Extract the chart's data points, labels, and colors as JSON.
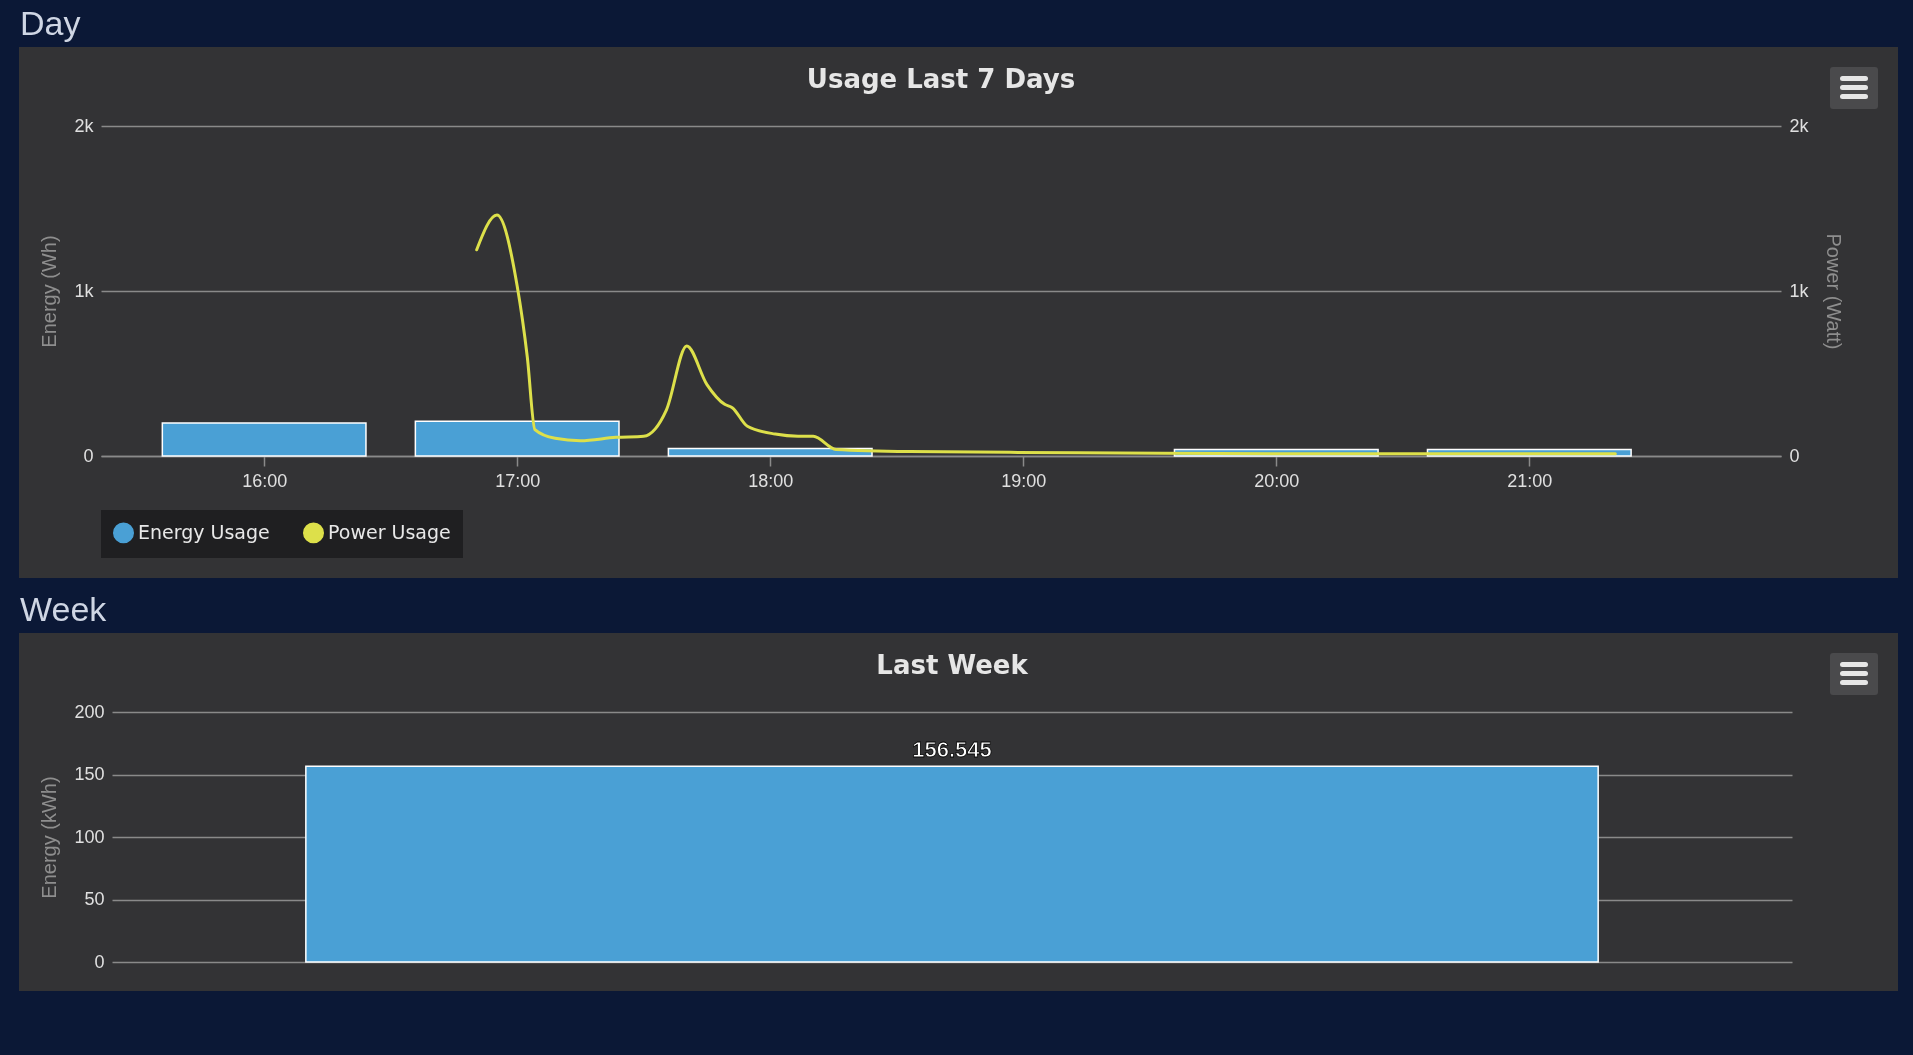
{
  "chart_data": [
    {
      "type": "bar",
      "title": "Usage Last 7 Days",
      "annotations": [
        "Day"
      ],
      "ylabel": "Energy (Wh)",
      "y2label": "Power (Watt)",
      "xlim": [
        15.375,
        21.975
      ],
      "xticks": [
        {
          "value": 16,
          "label": "16:00"
        },
        {
          "value": 17,
          "label": "17:00"
        },
        {
          "value": 18,
          "label": "18:00"
        },
        {
          "value": 19,
          "label": "19:00"
        },
        {
          "value": 20,
          "label": "20:00"
        },
        {
          "value": 21,
          "label": "21:00"
        }
      ],
      "ylim": [
        0,
        2000
      ],
      "yticks": [
        0,
        {
          "value": 1000,
          "label": "1k"
        },
        {
          "value": 2000,
          "label": "2k"
        }
      ],
      "y2lim": [
        0,
        2000
      ],
      "y2ticks": [
        0,
        {
          "value": 1000,
          "label": "1k"
        },
        {
          "value": 2000,
          "label": "2k"
        }
      ],
      "grid": "y",
      "legend": "bottom",
      "series": [
        {
          "name": "Energy Usage",
          "color": "#4aa0d5",
          "x": [
            16,
            17,
            18,
            20,
            21
          ],
          "values": [
            200,
            210,
            45,
            40,
            40
          ]
        },
        {
          "name": "Power Usage",
          "type": "line",
          "axis": "y2",
          "color": "#dde04a",
          "x": [
            16.84,
            16.92,
            17.0,
            17.04,
            17.07,
            17.15,
            17.25,
            17.39,
            17.5,
            17.59,
            17.67,
            17.75,
            17.82,
            17.85,
            17.91,
            18.02,
            18.11,
            18.17,
            18.26,
            18.55,
            19.22,
            20.18,
            21.34
          ],
          "values": [
            1250,
            1460,
            1030,
            600,
            160,
            107,
            93,
            113,
            120,
            280,
            667,
            433,
            313,
            293,
            180,
            133,
            120,
            120,
            40,
            27,
            20,
            13,
            13
          ]
        }
      ]
    },
    {
      "type": "bar",
      "title": "Last Week",
      "annotations": [
        "Week"
      ],
      "ylabel": "Energy (kWh)",
      "categories": [
        null
      ],
      "values": [
        156.545
      ],
      "color": "#4aa0d5",
      "data_labels": true,
      "ylim": [
        0,
        200
      ],
      "yticks": [
        0,
        50,
        100,
        150,
        200
      ],
      "grid": "y",
      "tick_labels": "y"
    }
  ]
}
